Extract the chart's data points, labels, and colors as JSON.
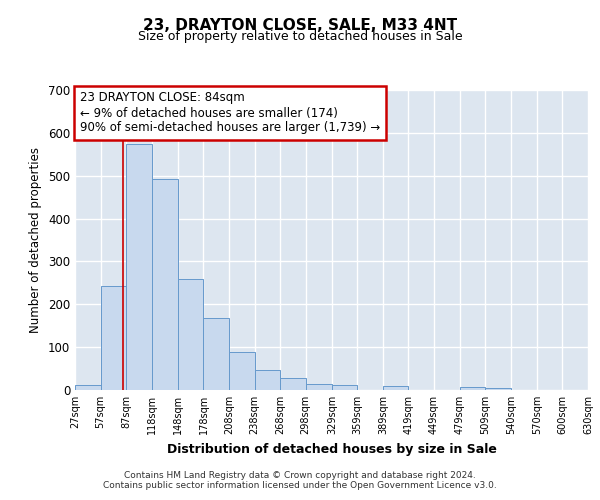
{
  "title": "23, DRAYTON CLOSE, SALE, M33 4NT",
  "subtitle": "Size of property relative to detached houses in Sale",
  "xlabel": "Distribution of detached houses by size in Sale",
  "ylabel": "Number of detached properties",
  "bar_color": "#c8d9ee",
  "bar_edge_color": "#6699cc",
  "background_color": "#dde6f0",
  "grid_color": "#ffffff",
  "annotation_box_color": "#cc0000",
  "annotation_text": [
    "23 DRAYTON CLOSE: 84sqm",
    "← 9% of detached houses are smaller (174)",
    "90% of semi-detached houses are larger (1,739) →"
  ],
  "property_line_x": 84,
  "bin_edges": [
    27,
    57,
    87,
    118,
    148,
    178,
    208,
    238,
    268,
    298,
    329,
    359,
    389,
    419,
    449,
    479,
    509,
    540,
    570,
    600,
    630
  ],
  "bar_heights": [
    12,
    242,
    575,
    492,
    258,
    168,
    88,
    47,
    27,
    13,
    12,
    0,
    10,
    0,
    0,
    6,
    4,
    0,
    0,
    0
  ],
  "xtick_labels": [
    "27sqm",
    "57sqm",
    "87sqm",
    "118sqm",
    "148sqm",
    "178sqm",
    "208sqm",
    "238sqm",
    "268sqm",
    "298sqm",
    "329sqm",
    "359sqm",
    "389sqm",
    "419sqm",
    "449sqm",
    "479sqm",
    "509sqm",
    "540sqm",
    "570sqm",
    "600sqm",
    "630sqm"
  ],
  "ylim": [
    0,
    700
  ],
  "yticks": [
    0,
    100,
    200,
    300,
    400,
    500,
    600,
    700
  ],
  "footer_lines": [
    "Contains HM Land Registry data © Crown copyright and database right 2024.",
    "Contains public sector information licensed under the Open Government Licence v3.0."
  ]
}
